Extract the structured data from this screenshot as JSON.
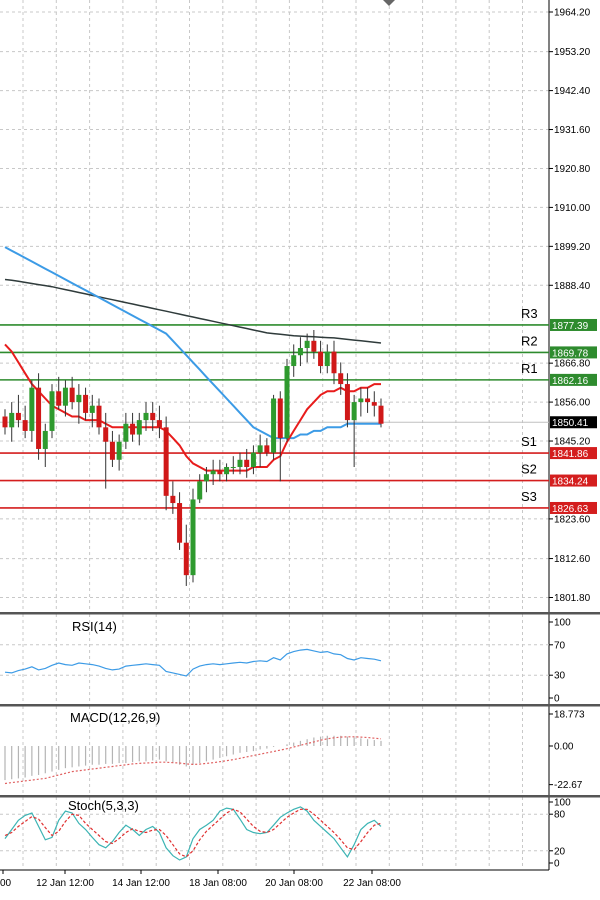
{
  "colors": {
    "background": "#ffffff",
    "grid": "#c8c8c8",
    "bull_candle": "#2e9a2e",
    "bear_candle": "#d01818",
    "ema_fast": "#e81c1c",
    "ma_mid": "#3c9be6",
    "ma_slow": "#2f3b3b",
    "resistance": "#2e8b2e",
    "support": "#d41e1e",
    "current_price_box": "#000000",
    "rsi": "#3c9be6",
    "macd_hist": "#b4b4b4",
    "macd_signal": "#e06060",
    "stoch_main": "#3cb4b4",
    "stoch_signal": "#e03030"
  },
  "chart_data": [
    {
      "type": "candlestick",
      "panel": "price",
      "ylim": [
        1796,
        1966
      ],
      "y_ticks": [
        "1964.20",
        "1953.20",
        "1942.40",
        "1931.60",
        "1920.80",
        "1910.00",
        "1899.20",
        "1888.40",
        "1866.80",
        "1856.00",
        "1845.20",
        "1823.60",
        "1812.60",
        "1801.80"
      ],
      "x_ticks": [
        "00",
        "12 Jan 12:00",
        "14 Jan 12:00",
        "18 Jan 08:00",
        "20 Jan 08:00",
        "22 Jan 08:00"
      ],
      "current_price": "1850.41",
      "levels": [
        {
          "name": "R3",
          "value": 1877.39,
          "label": "1877.39",
          "kind": "resistance"
        },
        {
          "name": "R2",
          "value": 1869.78,
          "label": "1869.78",
          "kind": "resistance"
        },
        {
          "name": "R1",
          "value": 1862.16,
          "label": "1862.16",
          "kind": "resistance"
        },
        {
          "name": "S1",
          "value": 1841.86,
          "label": "1841.86",
          "kind": "support"
        },
        {
          "name": "S2",
          "value": 1834.24,
          "label": "1834.24",
          "kind": "support"
        },
        {
          "name": "S3",
          "value": 1826.63,
          "label": "1826.63",
          "kind": "support"
        }
      ],
      "candles": [
        [
          1852,
          1854,
          1847,
          1849
        ],
        [
          1849,
          1856,
          1845,
          1853
        ],
        [
          1853,
          1858,
          1849,
          1851
        ],
        [
          1851,
          1855,
          1846,
          1848
        ],
        [
          1848,
          1862,
          1845,
          1860
        ],
        [
          1860,
          1864,
          1840,
          1843
        ],
        [
          1843,
          1850,
          1838,
          1848
        ],
        [
          1848,
          1861,
          1846,
          1859
        ],
        [
          1859,
          1863,
          1854,
          1855
        ],
        [
          1855,
          1862,
          1852,
          1860
        ],
        [
          1860,
          1863,
          1854,
          1856
        ],
        [
          1856,
          1861,
          1850,
          1858
        ],
        [
          1858,
          1860,
          1851,
          1853
        ],
        [
          1853,
          1858,
          1849,
          1855
        ],
        [
          1855,
          1857,
          1847,
          1849
        ],
        [
          1849,
          1853,
          1832,
          1845
        ],
        [
          1845,
          1848,
          1838,
          1840
        ],
        [
          1840,
          1847,
          1837,
          1845
        ],
        [
          1845,
          1853,
          1843,
          1850
        ],
        [
          1850,
          1853,
          1845,
          1847
        ],
        [
          1847,
          1853,
          1844,
          1851
        ],
        [
          1851,
          1856,
          1848,
          1853
        ],
        [
          1853,
          1856,
          1848,
          1851
        ],
        [
          1851,
          1855,
          1846,
          1849
        ],
        [
          1849,
          1852,
          1826,
          1830
        ],
        [
          1830,
          1834,
          1825,
          1828
        ],
        [
          1828,
          1831,
          1815,
          1817
        ],
        [
          1817,
          1822,
          1805,
          1808
        ],
        [
          1808,
          1832,
          1806,
          1829
        ],
        [
          1829,
          1836,
          1828,
          1834
        ],
        [
          1834,
          1838,
          1831,
          1836
        ],
        [
          1836,
          1840,
          1833,
          1837
        ],
        [
          1837,
          1840,
          1834,
          1836
        ],
        [
          1836,
          1839,
          1834,
          1838
        ],
        [
          1838,
          1841,
          1836,
          1838
        ],
        [
          1838,
          1842,
          1836,
          1840
        ],
        [
          1840,
          1843,
          1835,
          1838
        ],
        [
          1838,
          1844,
          1836,
          1842
        ],
        [
          1842,
          1847,
          1838,
          1844
        ],
        [
          1844,
          1846,
          1841,
          1842
        ],
        [
          1842,
          1858,
          1840,
          1857
        ],
        [
          1857,
          1859,
          1834,
          1846
        ],
        [
          1846,
          1868,
          1845,
          1866
        ],
        [
          1866,
          1872,
          1863,
          1869
        ],
        [
          1869,
          1874,
          1866,
          1871
        ],
        [
          1871,
          1875,
          1867,
          1873
        ],
        [
          1873,
          1876,
          1868,
          1870
        ],
        [
          1870,
          1873,
          1864,
          1866
        ],
        [
          1866,
          1872,
          1864,
          1870
        ],
        [
          1870,
          1873,
          1861,
          1864
        ],
        [
          1864,
          1867,
          1858,
          1861
        ],
        [
          1861,
          1864,
          1849,
          1851
        ],
        [
          1851,
          1858,
          1838,
          1856
        ],
        [
          1856,
          1860,
          1852,
          1857
        ],
        [
          1857,
          1860,
          1853,
          1856
        ],
        [
          1856,
          1859,
          1852,
          1855
        ],
        [
          1855,
          1857,
          1849,
          1850
        ]
      ],
      "ema_fast": [
        1872,
        1870,
        1867,
        1864,
        1861,
        1859,
        1857,
        1855,
        1854,
        1853,
        1852,
        1852,
        1851,
        1851,
        1851,
        1850,
        1849,
        1849,
        1849,
        1849,
        1849,
        1849,
        1849,
        1849,
        1848,
        1846,
        1844,
        1841,
        1839,
        1838,
        1837,
        1837,
        1837,
        1837,
        1837,
        1837,
        1837,
        1838,
        1838,
        1838,
        1840,
        1841,
        1845,
        1848,
        1851,
        1854,
        1856,
        1858,
        1859,
        1859,
        1860,
        1859,
        1859,
        1860,
        1860,
        1861,
        1861
      ],
      "ma_mid": [
        1899,
        1898,
        1897,
        1896,
        1895,
        1894,
        1893,
        1892,
        1891,
        1890,
        1889,
        1888,
        1887,
        1886,
        1885,
        1884,
        1883,
        1882,
        1881,
        1880,
        1879,
        1878,
        1877,
        1876,
        1875,
        1873,
        1871,
        1869,
        1867,
        1865,
        1863,
        1861,
        1859,
        1857,
        1855,
        1853,
        1851,
        1849,
        1848,
        1847,
        1846,
        1846,
        1846,
        1846,
        1847,
        1847,
        1848,
        1848,
        1849,
        1849,
        1849,
        1850,
        1850,
        1850,
        1850,
        1850,
        1850
      ],
      "ma_slow": [
        1890,
        1889.8,
        1889.5,
        1889.2,
        1888.9,
        1888.6,
        1888.3,
        1888,
        1887.6,
        1887.2,
        1886.8,
        1886.4,
        1886,
        1885.6,
        1885.2,
        1884.8,
        1884.4,
        1884,
        1883.6,
        1883.2,
        1882.8,
        1882.4,
        1882,
        1881.6,
        1881.2,
        1880.8,
        1880.4,
        1880,
        1879.6,
        1879.2,
        1878.8,
        1878.4,
        1878,
        1877.6,
        1877.2,
        1876.8,
        1876.4,
        1876,
        1875.6,
        1875.2,
        1875,
        1874.8,
        1874.6,
        1874.4,
        1874.3,
        1874.2,
        1874.1,
        1874,
        1873.9,
        1873.8,
        1873.6,
        1873.4,
        1873.2,
        1873,
        1872.8,
        1872.6,
        1872.4
      ]
    },
    {
      "type": "line",
      "panel": "rsi",
      "title": "RSI(14)",
      "ylim": [
        0,
        100
      ],
      "y_ticks": [
        "100",
        "70",
        "30",
        "0"
      ],
      "values": [
        34,
        33,
        36,
        38,
        41,
        37,
        39,
        43,
        46,
        44,
        43,
        46,
        45,
        44,
        42,
        39,
        37,
        38,
        42,
        43,
        44,
        45,
        44,
        43,
        35,
        33,
        31,
        29,
        38,
        42,
        44,
        45,
        44,
        45,
        46,
        47,
        46,
        48,
        49,
        48,
        53,
        50,
        58,
        61,
        63,
        64,
        62,
        60,
        61,
        58,
        57,
        52,
        50,
        53,
        52,
        51,
        49
      ]
    },
    {
      "type": "bar",
      "panel": "macd",
      "title": "MACD(12,26,9)",
      "ylim": [
        -24,
        20
      ],
      "y_ticks": [
        "18.773",
        "0.00",
        "-22.67"
      ],
      "values": [
        -20,
        -19.5,
        -19,
        -18.5,
        -17.5,
        -17,
        -16,
        -15,
        -14,
        -13,
        -12.5,
        -12,
        -11.5,
        -11,
        -11,
        -10.5,
        -10.5,
        -10,
        -10,
        -9.5,
        -9,
        -9,
        -8.5,
        -8,
        -9,
        -10,
        -11,
        -12,
        -11,
        -10,
        -9,
        -8,
        -7,
        -6,
        -5,
        -4,
        -3.5,
        -3,
        -2,
        -1.5,
        -0.5,
        0,
        1,
        2,
        3,
        4,
        5,
        5.5,
        6,
        6,
        6,
        5.5,
        5,
        4.5,
        4,
        3.5,
        3
      ],
      "signal": [
        -22,
        -21.5,
        -21,
        -20.5,
        -20,
        -19.5,
        -19,
        -18,
        -17,
        -16,
        -15,
        -14.5,
        -14,
        -13.5,
        -13,
        -12.5,
        -12,
        -11.5,
        -11,
        -10.5,
        -10.2,
        -10,
        -9.8,
        -9.5,
        -9.5,
        -9.8,
        -10,
        -10.5,
        -10.8,
        -10.6,
        -10.2,
        -9.8,
        -9.2,
        -8.6,
        -8,
        -7.2,
        -6.4,
        -5.6,
        -4.8,
        -4,
        -3.2,
        -2.4,
        -1.6,
        -0.6,
        0.4,
        1.4,
        2.4,
        3.4,
        4.2,
        4.8,
        5.2,
        5.4,
        5.4,
        5.2,
        5,
        4.6,
        4.2
      ]
    },
    {
      "type": "line",
      "panel": "stoch",
      "title": "Stoch(5,3,3)",
      "ylim": [
        0,
        100
      ],
      "y_ticks": [
        "100",
        "80",
        "20",
        "0"
      ],
      "main": [
        40,
        55,
        70,
        78,
        82,
        60,
        38,
        42,
        70,
        85,
        82,
        65,
        55,
        42,
        30,
        25,
        35,
        50,
        62,
        55,
        45,
        55,
        60,
        50,
        25,
        12,
        5,
        10,
        40,
        55,
        62,
        70,
        85,
        90,
        88,
        72,
        55,
        50,
        48,
        50,
        62,
        75,
        82,
        88,
        92,
        85,
        70,
        60,
        50,
        40,
        25,
        10,
        30,
        55,
        65,
        70,
        60
      ],
      "signal": [
        45,
        50,
        60,
        68,
        76,
        72,
        58,
        45,
        52,
        68,
        80,
        78,
        65,
        55,
        45,
        35,
        32,
        40,
        50,
        56,
        52,
        50,
        54,
        55,
        45,
        30,
        15,
        10,
        20,
        38,
        52,
        62,
        72,
        82,
        88,
        84,
        72,
        60,
        52,
        50,
        55,
        65,
        75,
        82,
        88,
        88,
        80,
        70,
        60,
        50,
        38,
        25,
        22,
        35,
        50,
        62,
        65
      ]
    }
  ]
}
